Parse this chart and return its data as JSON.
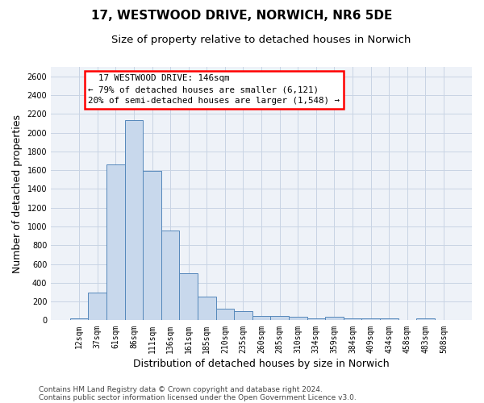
{
  "title1": "17, WESTWOOD DRIVE, NORWICH, NR6 5DE",
  "title2": "Size of property relative to detached houses in Norwich",
  "xlabel": "Distribution of detached houses by size in Norwich",
  "ylabel": "Number of detached properties",
  "annotation_line1": "  17 WESTWOOD DRIVE: 146sqm",
  "annotation_line2": "← 79% of detached houses are smaller (6,121)",
  "annotation_line3": "20% of semi-detached houses are larger (1,548) →",
  "footer1": "Contains HM Land Registry data © Crown copyright and database right 2024.",
  "footer2": "Contains public sector information licensed under the Open Government Licence v3.0.",
  "bar_color": "#c8d8ec",
  "bar_edge_color": "#5588bb",
  "background_color": "#eef2f8",
  "categories": [
    "12sqm",
    "37sqm",
    "61sqm",
    "86sqm",
    "111sqm",
    "136sqm",
    "161sqm",
    "185sqm",
    "210sqm",
    "235sqm",
    "260sqm",
    "285sqm",
    "310sqm",
    "334sqm",
    "359sqm",
    "384sqm",
    "409sqm",
    "434sqm",
    "458sqm",
    "483sqm",
    "508sqm"
  ],
  "values": [
    25,
    300,
    1660,
    2130,
    1590,
    960,
    500,
    250,
    120,
    100,
    50,
    50,
    35,
    25,
    35,
    20,
    20,
    20,
    5,
    25,
    0
  ],
  "ylim": [
    0,
    2700
  ],
  "yticks": [
    0,
    200,
    400,
    600,
    800,
    1000,
    1200,
    1400,
    1600,
    1800,
    2000,
    2200,
    2400,
    2600
  ],
  "grid_color": "#c8d4e4",
  "title1_fontsize": 11,
  "title2_fontsize": 9.5,
  "xlabel_fontsize": 9,
  "ylabel_fontsize": 9,
  "annotation_fontsize": 7.8,
  "tick_fontsize": 7,
  "footer_fontsize": 6.5
}
